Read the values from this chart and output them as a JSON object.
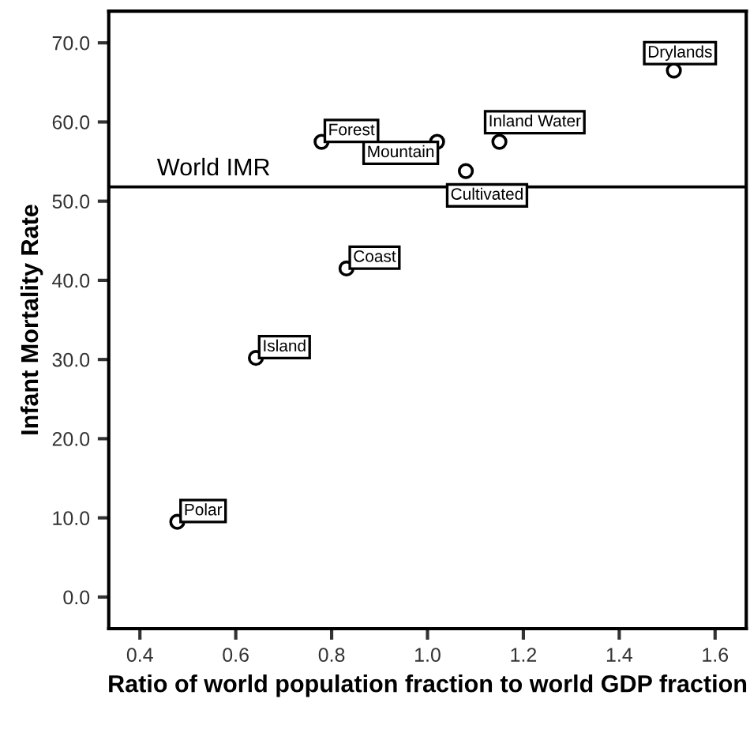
{
  "chart_data": {
    "type": "scatter",
    "xlabel": "Ratio of world population fraction to world GDP fraction",
    "ylabel": "Infant Mortality Rate",
    "x": [
      0.478,
      0.642,
      0.831,
      0.779,
      1.02,
      1.15,
      1.08,
      1.514
    ],
    "values": [
      9.5,
      30.2,
      41.5,
      57.5,
      57.5,
      57.5,
      53.8,
      66.5
    ],
    "color": "#000000",
    "marker": "circle",
    "grid": false,
    "xlim": [
      0.335,
      1.665
    ],
    "ylim": [
      -4,
      74
    ],
    "xticks": [
      {
        "value": 0.4,
        "label": "0.4"
      },
      {
        "value": 0.6,
        "label": "0.6"
      },
      {
        "value": 0.8,
        "label": "0.8"
      },
      {
        "value": 1.0,
        "label": "1.0"
      },
      {
        "value": 1.2,
        "label": "1.2"
      },
      {
        "value": 1.4,
        "label": "1.4"
      },
      {
        "value": 1.6,
        "label": "1.6"
      }
    ],
    "yticks": [
      {
        "value": 0,
        "label": "0.0"
      },
      {
        "value": 10,
        "label": "10.0"
      },
      {
        "value": 20,
        "label": "20.0"
      },
      {
        "value": 30,
        "label": "30.0"
      },
      {
        "value": 40,
        "label": "40.0"
      },
      {
        "value": 50,
        "label": "50.0"
      },
      {
        "value": 60,
        "label": "60.0"
      },
      {
        "value": 70,
        "label": "70.0"
      }
    ],
    "ref_lines": [
      {
        "axis": "y",
        "value": 51.8,
        "label": "World IMR",
        "color": "#000000"
      }
    ],
    "annotations": [
      {
        "text": "Polar",
        "x": 0.478,
        "y": 9.5
      },
      {
        "text": "Island",
        "x": 0.642,
        "y": 30.2
      },
      {
        "text": "Coast",
        "x": 0.831,
        "y": 41.5
      },
      {
        "text": "Forest",
        "x": 0.779,
        "y": 57.5
      },
      {
        "text": "Mountain",
        "x": 1.02,
        "y": 57.5
      },
      {
        "text": "Inland Water",
        "x": 1.15,
        "y": 57.5
      },
      {
        "text": "Cultivated",
        "x": 1.08,
        "y": 53.8
      },
      {
        "text": "Drylands",
        "x": 1.514,
        "y": 66.5
      }
    ]
  }
}
